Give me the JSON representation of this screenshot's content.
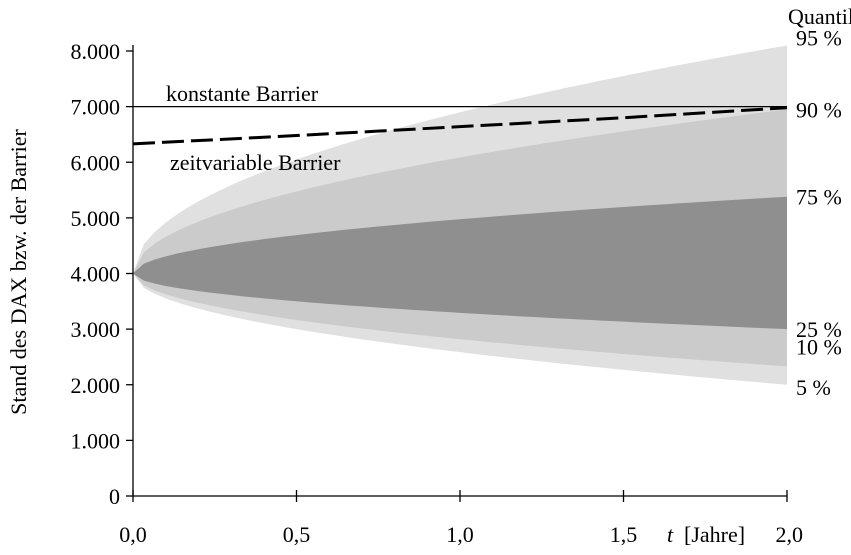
{
  "chart_data": {
    "type": "area",
    "ylabel": "Stand des DAX bzw. der Barrier",
    "x_unit_symbol": "t",
    "x_unit_text": "[Jahre]",
    "xlim": [
      0,
      2
    ],
    "ylim": [
      0,
      8000
    ],
    "x_ticks": [
      0,
      0.5,
      1.0,
      1.5,
      2.0
    ],
    "x_tick_labels": [
      "0,0",
      "0,5",
      "1,0",
      "1,5",
      "2,0"
    ],
    "y_ticks": [
      0,
      1000,
      2000,
      3000,
      4000,
      5000,
      6000,
      7000,
      8000
    ],
    "y_tick_labels": [
      "0",
      "1.000",
      "2.000",
      "3.000",
      "4.000",
      "5.000",
      "6.000",
      "7.000",
      "8.000"
    ],
    "legend_title": "Quantile",
    "start_value": 4000,
    "quantile_bands": [
      {
        "lower_label": "5 %",
        "upper_label": "95 %",
        "lower_end": 2000,
        "upper_end": 8100,
        "color": "#e0e0e0"
      },
      {
        "lower_label": "10 %",
        "upper_label": "90 %",
        "lower_end": 2330,
        "upper_end": 6950,
        "color": "#cbcbcb"
      },
      {
        "lower_label": "25 %",
        "upper_label": "75 %",
        "lower_end": 3000,
        "upper_end": 5380,
        "color": "#8f8f8f"
      }
    ],
    "barriers": [
      {
        "name": "konstante Barrier",
        "style": "solid",
        "x": [
          0,
          2
        ],
        "y": [
          7000,
          7000
        ]
      },
      {
        "name": "zeitvariable Barrier",
        "style": "dashed",
        "x": [
          0,
          0.5,
          1.0,
          1.5,
          2.0
        ],
        "y": [
          6330,
          6480,
          6640,
          6800,
          6980
        ]
      }
    ],
    "grid": false
  }
}
